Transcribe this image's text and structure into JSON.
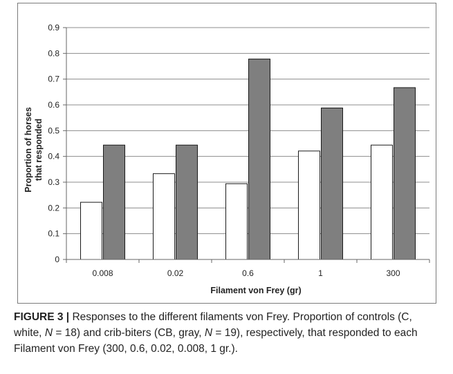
{
  "chart_data": {
    "type": "bar",
    "categories": [
      "0.008",
      "0.02",
      "0.6",
      "1",
      "300"
    ],
    "series": [
      {
        "values": [
          0.222,
          0.333,
          0.294,
          0.421,
          0.444
        ],
        "color": "#ffffff"
      },
      {
        "values": [
          0.444,
          0.444,
          0.778,
          0.588,
          0.667
        ],
        "color": "#7f7f7f"
      }
    ],
    "ylim": [
      0,
      0.9
    ],
    "yticks": [
      "0",
      "0.1",
      "0.2",
      "0.3",
      "0.4",
      "0.5",
      "0.6",
      "0.7",
      "0.8",
      "0.9"
    ],
    "ylabel_line1": "Proportion of horses",
    "ylabel_line2": "that responded",
    "xlabel": "Filament von Frey (gr)",
    "grid": true,
    "legend": "none"
  },
  "caption": {
    "label": "FIGURE 3 |",
    "text_1": " Responses to the different filaments von Frey. Proportion of controls (C, white, ",
    "n_symbol_1": "N",
    "text_2": " = 18) and crib-biters (CB, gray, ",
    "n_symbol_2": "N",
    "text_3": " = 19), respectively, that responded to each Filament von Frey (300, 0.6, 0.02, 0.008, 1 gr.)."
  }
}
